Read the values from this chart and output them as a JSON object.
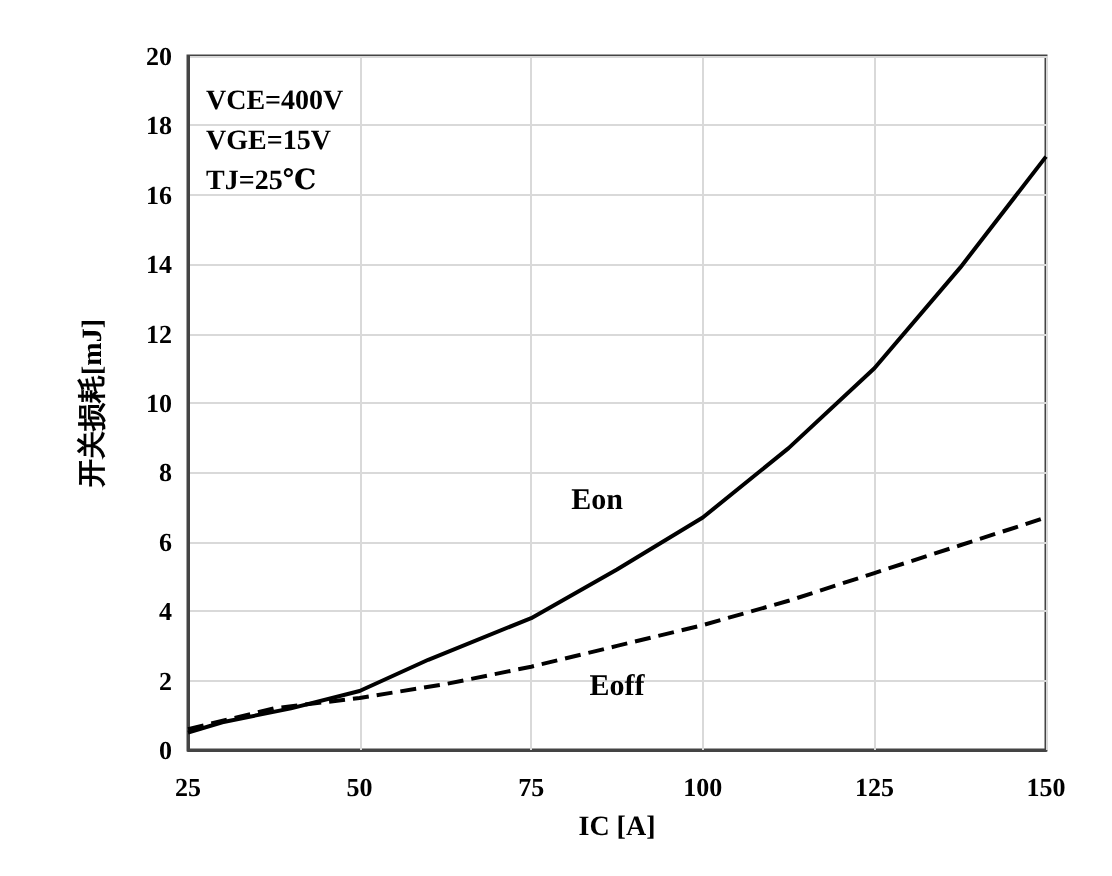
{
  "chart_data": {
    "type": "line",
    "xlabel": "IC [A]",
    "ylabel": "开关损耗[mJ]",
    "annotations": [
      "VCE=400V",
      "VGE=15V",
      "TJ=25℃"
    ],
    "xlim": [
      25,
      150
    ],
    "xticks": [
      25,
      50,
      75,
      100,
      125,
      150
    ],
    "ylim": [
      0,
      20
    ],
    "yticks": [
      0,
      2,
      4,
      6,
      8,
      10,
      12,
      14,
      16,
      18,
      20
    ],
    "grid": true,
    "legend": false,
    "marker": "none",
    "series": [
      {
        "name": "Eon",
        "color": "#000000",
        "line_style": "solid",
        "x": [
          25,
          30,
          40,
          50,
          60,
          75,
          87.5,
          100,
          112.5,
          125,
          137.5,
          150
        ],
        "values": [
          0.5,
          0.8,
          1.2,
          1.7,
          2.6,
          3.8,
          5.2,
          6.7,
          8.7,
          11,
          13.9,
          17.1
        ]
      },
      {
        "name": "Eoff",
        "color": "#000000",
        "line_style": "dashed",
        "x": [
          25,
          37.5,
          50,
          62.5,
          75,
          87.5,
          100,
          112.5,
          125,
          137.5,
          150
        ],
        "values": [
          0.6,
          1.2,
          1.5,
          1.9,
          2.4,
          3.0,
          3.6,
          4.3,
          5.1,
          5.9,
          6.7
        ]
      }
    ]
  }
}
